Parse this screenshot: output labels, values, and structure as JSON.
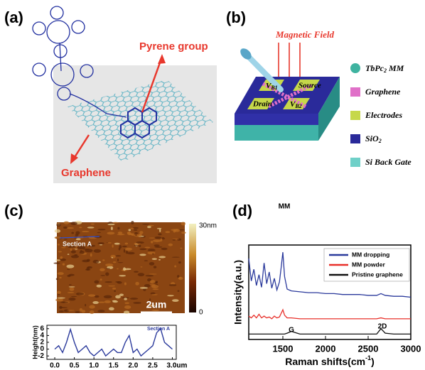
{
  "panel_a": {
    "label": "(a)",
    "pyrene": "Pyrene group",
    "graphene": "Graphene"
  },
  "panel_b": {
    "label": "(b)",
    "field": "Magnetic Field",
    "vb1": [
      "V",
      "B1"
    ],
    "source": "Source",
    "drain": "Drain",
    "vb2": [
      "V",
      "B2"
    ],
    "legend": [
      [
        "TbPc",
        "2",
        " MM"
      ],
      [
        "Graphene"
      ],
      [
        "Electrodes"
      ],
      [
        "SiO",
        "2"
      ],
      [
        "Si Back Gate"
      ]
    ]
  },
  "panel_c": {
    "label": "(c)",
    "section": "Section A",
    "scale": "2um",
    "colorbar_max": "30nm",
    "colorbar_min": "0"
  },
  "panel_d": {
    "label": "(d)"
  },
  "chart_data": [
    {
      "type": "line",
      "ylabel": "Height(nm)",
      "annotation": "Section A",
      "color": "#2b3a9c",
      "x": [
        0,
        0.1,
        0.2,
        0.3,
        0.4,
        0.5,
        0.6,
        0.7,
        0.8,
        0.9,
        1,
        1.1,
        1.2,
        1.3,
        1.4,
        1.5,
        1.6,
        1.7,
        1.8,
        1.9,
        2,
        2.1,
        2.2,
        2.3,
        2.4,
        2.5,
        2.6,
        2.7,
        2.8,
        2.9,
        3
      ],
      "values": [
        0,
        1,
        -1,
        2,
        5.8,
        2,
        -1,
        0,
        1,
        -1,
        -2,
        -1,
        0,
        -2,
        -1,
        0,
        -1,
        -1,
        2,
        4,
        -1,
        0,
        -2,
        -1,
        0,
        1,
        4.8,
        6,
        2,
        1,
        0
      ],
      "xlim": [
        -0.2,
        3.1
      ],
      "ylim": [
        -3,
        7
      ],
      "xticks": [
        {
          "value": 0,
          "label": "0.0"
        },
        0.5,
        {
          "value": 1,
          "label": "1.0"
        },
        1.5,
        {
          "value": 2,
          "label": "2.0"
        },
        2.5,
        {
          "value": 3,
          "label": "3.0um"
        }
      ],
      "yticks": [
        -2,
        0,
        2,
        4,
        6
      ]
    },
    {
      "type": "line",
      "ylabel": "Intensity(a.u.)",
      "xlabel": [
        "Raman shifts(cm",
        "-1",
        ")"
      ],
      "annotations": [
        "MM",
        "G",
        "2D"
      ],
      "x": [
        1100,
        1130,
        1160,
        1190,
        1220,
        1250,
        1280,
        1310,
        1340,
        1370,
        1400,
        1430,
        1460,
        1480,
        1500,
        1520,
        1550,
        1600,
        1700,
        1800,
        1900,
        2000,
        2100,
        2200,
        2300,
        2400,
        2500,
        2600,
        2650,
        2700,
        2800,
        2900,
        3000
      ],
      "series": [
        {
          "name": "MM dropping",
          "color": "#2b3a9c",
          "values": [
            90,
            65,
            78,
            60,
            72,
            58,
            85,
            62,
            75,
            57,
            68,
            55,
            64,
            80,
            97,
            70,
            56,
            54,
            53,
            52,
            52,
            51,
            51,
            50,
            50,
            50,
            49,
            49,
            51,
            49,
            48,
            48,
            47
          ]
        },
        {
          "name": "MM powder",
          "color": "#e8302a",
          "values": [
            26,
            24,
            27,
            24,
            28,
            24,
            26,
            24,
            25,
            23,
            26,
            24,
            25,
            29,
            33,
            27,
            24,
            24,
            23,
            23,
            23,
            23,
            23,
            23,
            23,
            23,
            23,
            23,
            24,
            23,
            23,
            23,
            23
          ]
        },
        {
          "name": "Pristine graphene",
          "color": "#111111",
          "values": [
            6,
            6,
            6,
            6,
            6,
            6,
            6,
            6,
            6,
            6,
            6,
            6,
            6,
            6,
            6,
            6,
            7,
            9,
            6,
            6,
            6,
            6,
            6,
            6,
            6,
            6,
            6,
            6,
            12,
            7,
            6,
            6,
            6
          ]
        }
      ],
      "xlim": [
        1100,
        3000
      ],
      "ylim": [
        0,
        105
      ],
      "xticks": [
        1500,
        2000,
        2500,
        3000
      ]
    }
  ]
}
